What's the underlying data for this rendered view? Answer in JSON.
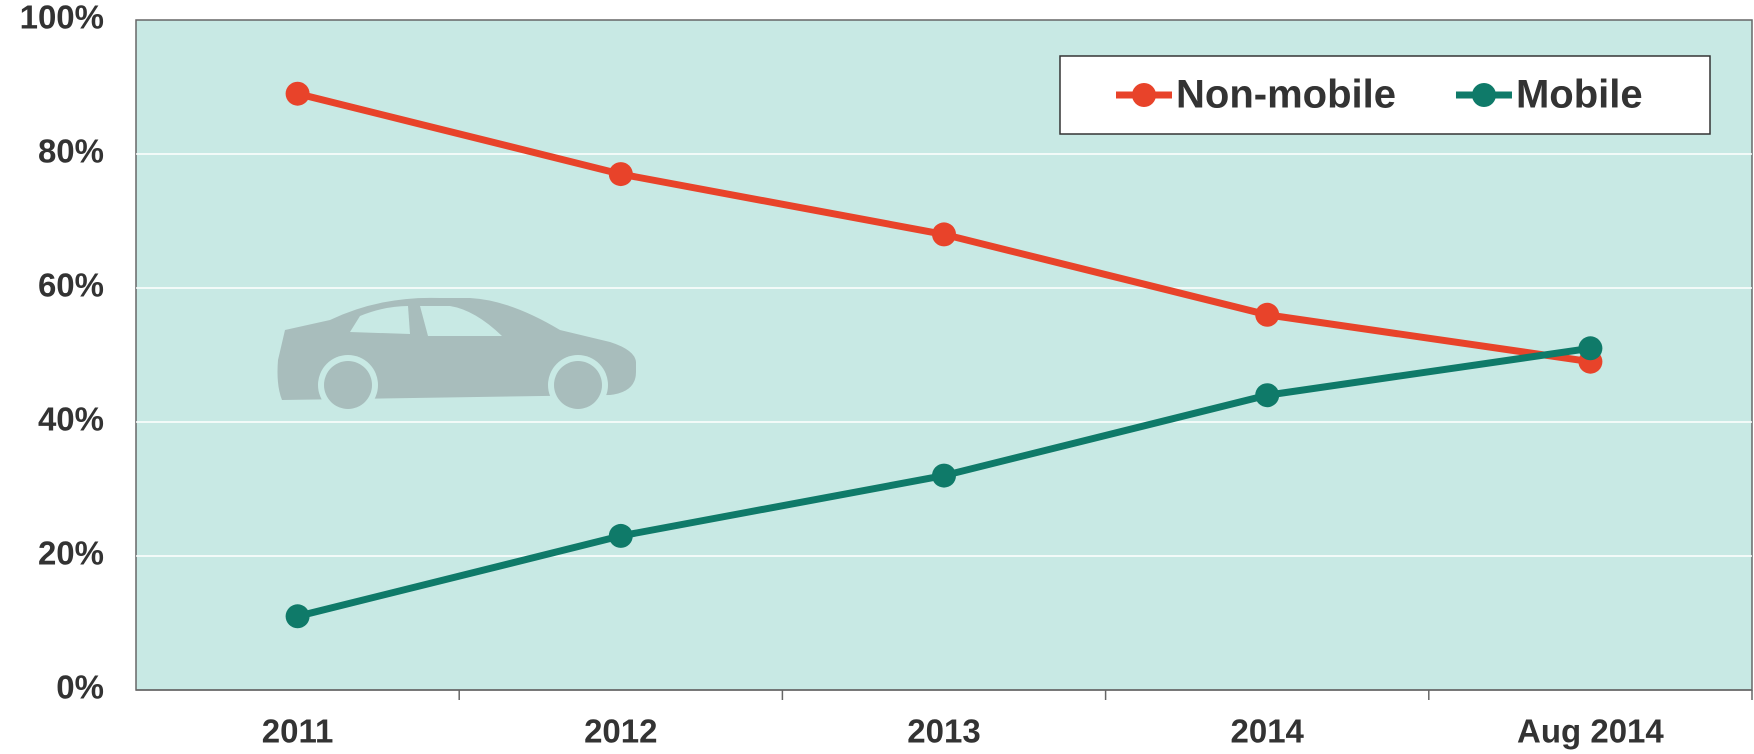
{
  "chart_data": {
    "type": "line",
    "categories": [
      "2011",
      "2012",
      "2013",
      "2014",
      "Aug 2014"
    ],
    "series": [
      {
        "name": "Non-mobile",
        "color": "#e8432a",
        "values": [
          89,
          77,
          68,
          56,
          49
        ]
      },
      {
        "name": "Mobile",
        "color": "#0f7a69",
        "values": [
          11,
          23,
          32,
          44,
          51
        ]
      }
    ],
    "ylim": [
      0,
      100
    ],
    "yticks": [
      {
        "value": 0,
        "label": "0%"
      },
      {
        "value": 20,
        "label": "20%"
      },
      {
        "value": 40,
        "label": "40%"
      },
      {
        "value": 60,
        "label": "60%"
      },
      {
        "value": 80,
        "label": "80%"
      },
      {
        "value": 100,
        "label": "100%"
      }
    ],
    "grid": true,
    "legend": "top-right"
  }
}
